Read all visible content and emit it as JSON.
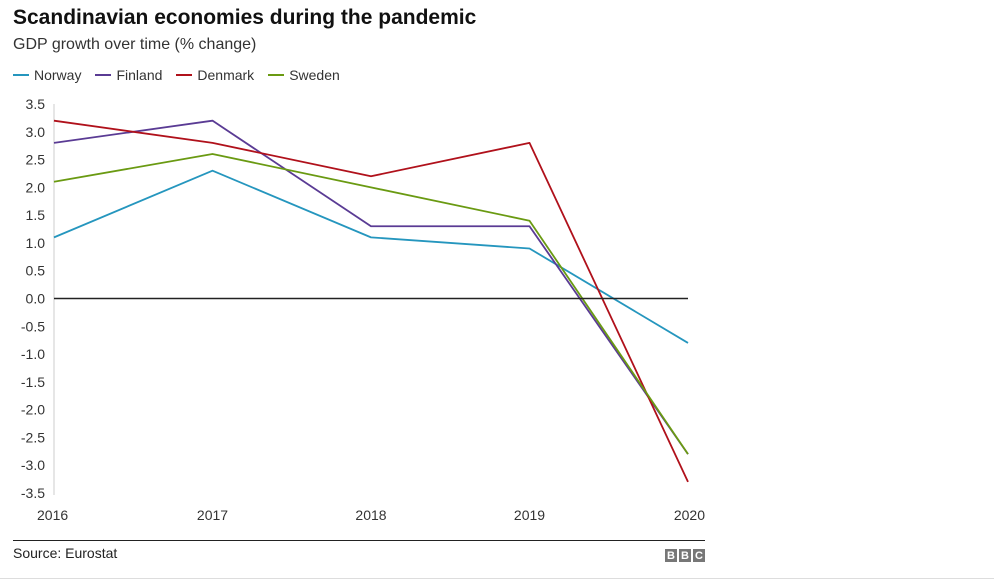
{
  "chart_data": {
    "type": "line",
    "title": "Scandinavian economies during the pandemic",
    "subtitle": "GDP growth over time (% change)",
    "x": [
      "2016",
      "2017",
      "2018",
      "2019",
      "2020"
    ],
    "ylim": [
      -3.5,
      3.5
    ],
    "yticks": [
      "3.5",
      "3.0",
      "2.5",
      "2.0",
      "1.5",
      "1.0",
      "0.5",
      "0.0",
      "-0.5",
      "-1.0",
      "-1.5",
      "-2.0",
      "-2.5",
      "-3.0",
      "-3.5"
    ],
    "legend_placement": "top-left",
    "series": [
      {
        "name": "Norway",
        "color": "#2596be",
        "values": [
          1.1,
          2.3,
          1.1,
          0.9,
          -0.8
        ]
      },
      {
        "name": "Finland",
        "color": "#5a3b94",
        "values": [
          2.8,
          3.2,
          1.3,
          1.3,
          -2.8
        ]
      },
      {
        "name": "Denmark",
        "color": "#b0111b",
        "values": [
          3.2,
          2.8,
          2.2,
          2.8,
          -3.3
        ]
      },
      {
        "name": "Sweden",
        "color": "#6a9a12",
        "values": [
          2.1,
          2.6,
          2.0,
          1.4,
          -2.8
        ]
      }
    ],
    "source": "Source: Eurostat",
    "logo": [
      "B",
      "B",
      "C"
    ]
  }
}
